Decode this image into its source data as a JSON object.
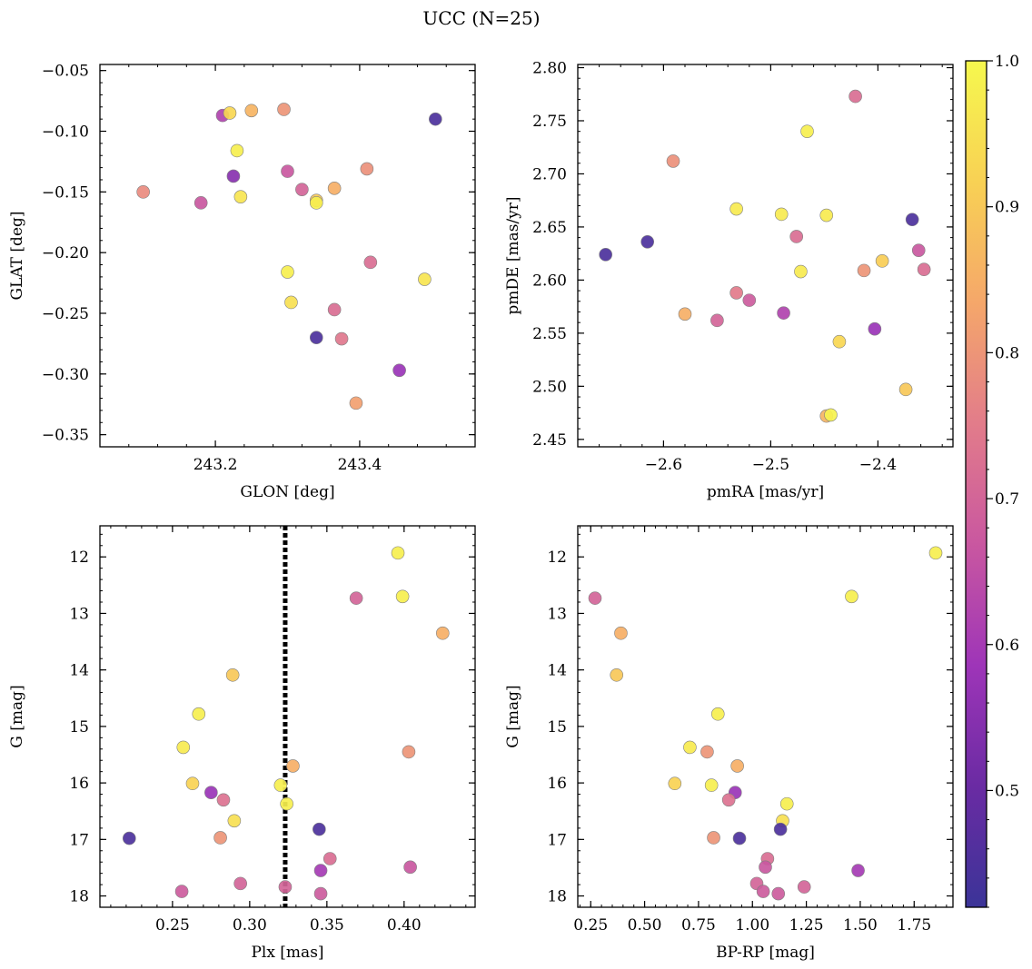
{
  "figure_title": "UCC (N=25)",
  "colorbar": {
    "ticks": [
      "0.5",
      "0.6",
      "0.7",
      "0.8",
      "0.9",
      "1.0"
    ],
    "tick_values": [
      0.5,
      0.6,
      0.7,
      0.8,
      0.9,
      1.0
    ],
    "range": [
      0.42,
      1.0
    ],
    "stops": [
      "#3b3498",
      "#6a2ba3",
      "#9e35b8",
      "#c957a0",
      "#e27c8a",
      "#f5a76a",
      "#f8d154",
      "#f6f84e"
    ]
  },
  "chart_data": [
    {
      "type": "scatter",
      "xlabel": "GLON [deg]",
      "ylabel": "GLAT [deg]",
      "xlim": [
        243.04,
        243.56
      ],
      "ylim": [
        -0.36,
        -0.045
      ],
      "invert_y": false,
      "xticks": [
        243.2,
        243.4
      ],
      "xtick_labels": [
        "243.2",
        "243.4"
      ],
      "yticks": [
        -0.35,
        -0.3,
        -0.25,
        -0.2,
        -0.15,
        -0.1,
        -0.05
      ],
      "ytick_labels": [
        "−0.35",
        "−0.30",
        "−0.25",
        "−0.20",
        "−0.15",
        "−0.10",
        "−0.05"
      ],
      "points": [
        {
          "x": 243.1,
          "y": -0.15,
          "c": 0.78
        },
        {
          "x": 243.18,
          "y": -0.159,
          "c": 0.67
        },
        {
          "x": 243.21,
          "y": -0.087,
          "c": 0.62
        },
        {
          "x": 243.22,
          "y": -0.085,
          "c": 0.93
        },
        {
          "x": 243.225,
          "y": -0.137,
          "c": 0.55
        },
        {
          "x": 243.23,
          "y": -0.116,
          "c": 0.98
        },
        {
          "x": 243.235,
          "y": -0.154,
          "c": 0.96
        },
        {
          "x": 243.25,
          "y": -0.083,
          "c": 0.86
        },
        {
          "x": 243.295,
          "y": -0.082,
          "c": 0.8
        },
        {
          "x": 243.3,
          "y": -0.133,
          "c": 0.67
        },
        {
          "x": 243.3,
          "y": -0.216,
          "c": 0.98
        },
        {
          "x": 243.305,
          "y": -0.241,
          "c": 0.95
        },
        {
          "x": 243.32,
          "y": -0.148,
          "c": 0.7
        },
        {
          "x": 243.34,
          "y": -0.157,
          "c": 0.9
        },
        {
          "x": 243.34,
          "y": -0.159,
          "c": 0.98
        },
        {
          "x": 243.34,
          "y": -0.27,
          "c": 0.45
        },
        {
          "x": 243.365,
          "y": -0.147,
          "c": 0.85
        },
        {
          "x": 243.365,
          "y": -0.247,
          "c": 0.72
        },
        {
          "x": 243.375,
          "y": -0.271,
          "c": 0.74
        },
        {
          "x": 243.395,
          "y": -0.324,
          "c": 0.82
        },
        {
          "x": 243.41,
          "y": -0.131,
          "c": 0.79
        },
        {
          "x": 243.415,
          "y": -0.208,
          "c": 0.72
        },
        {
          "x": 243.455,
          "y": -0.297,
          "c": 0.58
        },
        {
          "x": 243.49,
          "y": -0.222,
          "c": 0.96
        },
        {
          "x": 243.505,
          "y": -0.09,
          "c": 0.45
        }
      ]
    },
    {
      "type": "scatter",
      "xlabel": "pmRA [mas/yr]",
      "ylabel": "pmDE [mas/yr]",
      "xlim": [
        -2.68,
        -2.33
      ],
      "ylim": [
        2.443,
        2.803
      ],
      "invert_y": false,
      "xticks": [
        -2.6,
        -2.5,
        -2.4
      ],
      "xtick_labels": [
        "−2.6",
        "−2.5",
        "−2.4"
      ],
      "yticks": [
        2.45,
        2.5,
        2.55,
        2.6,
        2.65,
        2.7,
        2.75,
        2.8
      ],
      "ytick_labels": [
        "2.45",
        "2.50",
        "2.55",
        "2.60",
        "2.65",
        "2.70",
        "2.75",
        "2.80"
      ],
      "points": [
        {
          "x": -2.654,
          "y": 2.624,
          "c": 0.45
        },
        {
          "x": -2.615,
          "y": 2.636,
          "c": 0.45
        },
        {
          "x": -2.591,
          "y": 2.712,
          "c": 0.79
        },
        {
          "x": -2.58,
          "y": 2.568,
          "c": 0.85
        },
        {
          "x": -2.55,
          "y": 2.562,
          "c": 0.7
        },
        {
          "x": -2.532,
          "y": 2.667,
          "c": 0.97
        },
        {
          "x": -2.532,
          "y": 2.588,
          "c": 0.75
        },
        {
          "x": -2.52,
          "y": 2.581,
          "c": 0.68
        },
        {
          "x": -2.49,
          "y": 2.662,
          "c": 0.97
        },
        {
          "x": -2.488,
          "y": 2.569,
          "c": 0.62
        },
        {
          "x": -2.476,
          "y": 2.641,
          "c": 0.72
        },
        {
          "x": -2.472,
          "y": 2.608,
          "c": 0.97
        },
        {
          "x": -2.466,
          "y": 2.74,
          "c": 0.98
        },
        {
          "x": -2.448,
          "y": 2.661,
          "c": 0.97
        },
        {
          "x": -2.448,
          "y": 2.472,
          "c": 0.86
        },
        {
          "x": -2.444,
          "y": 2.473,
          "c": 0.99
        },
        {
          "x": -2.436,
          "y": 2.542,
          "c": 0.93
        },
        {
          "x": -2.421,
          "y": 2.773,
          "c": 0.72
        },
        {
          "x": -2.413,
          "y": 2.609,
          "c": 0.8
        },
        {
          "x": -2.403,
          "y": 2.554,
          "c": 0.58
        },
        {
          "x": -2.396,
          "y": 2.618,
          "c": 0.91
        },
        {
          "x": -2.374,
          "y": 2.497,
          "c": 0.9
        },
        {
          "x": -2.368,
          "y": 2.657,
          "c": 0.45
        },
        {
          "x": -2.362,
          "y": 2.628,
          "c": 0.67
        },
        {
          "x": -2.357,
          "y": 2.61,
          "c": 0.72
        }
      ]
    },
    {
      "type": "scatter",
      "xlabel": "Plx [mas]",
      "ylabel": "G [mag]",
      "xlim": [
        0.203,
        0.446
      ],
      "ylim": [
        11.45,
        18.2
      ],
      "invert_y": true,
      "xticks": [
        0.25,
        0.3,
        0.35,
        0.4
      ],
      "xtick_labels": [
        "0.25",
        "0.30",
        "0.35",
        "0.40"
      ],
      "yticks": [
        12,
        13,
        14,
        15,
        16,
        17,
        18
      ],
      "ytick_labels": [
        "12",
        "13",
        "14",
        "15",
        "16",
        "17",
        "18"
      ],
      "vline": {
        "x": 0.323,
        "style": "dotted"
      },
      "points": [
        {
          "x": 0.222,
          "y": 16.98,
          "c": 0.45
        },
        {
          "x": 0.256,
          "y": 17.92,
          "c": 0.68
        },
        {
          "x": 0.257,
          "y": 15.37,
          "c": 0.97
        },
        {
          "x": 0.263,
          "y": 16.01,
          "c": 0.92
        },
        {
          "x": 0.267,
          "y": 14.78,
          "c": 0.98
        },
        {
          "x": 0.275,
          "y": 16.17,
          "c": 0.58
        },
        {
          "x": 0.281,
          "y": 16.97,
          "c": 0.8
        },
        {
          "x": 0.283,
          "y": 16.3,
          "c": 0.73
        },
        {
          "x": 0.289,
          "y": 14.09,
          "c": 0.9
        },
        {
          "x": 0.29,
          "y": 16.67,
          "c": 0.95
        },
        {
          "x": 0.294,
          "y": 17.78,
          "c": 0.7
        },
        {
          "x": 0.32,
          "y": 16.04,
          "c": 0.98
        },
        {
          "x": 0.323,
          "y": 17.84,
          "c": 0.7
        },
        {
          "x": 0.324,
          "y": 16.37,
          "c": 0.98
        },
        {
          "x": 0.328,
          "y": 15.7,
          "c": 0.85
        },
        {
          "x": 0.345,
          "y": 16.82,
          "c": 0.45
        },
        {
          "x": 0.346,
          "y": 17.55,
          "c": 0.6
        },
        {
          "x": 0.346,
          "y": 17.96,
          "c": 0.68
        },
        {
          "x": 0.352,
          "y": 17.34,
          "c": 0.72
        },
        {
          "x": 0.369,
          "y": 12.73,
          "c": 0.7
        },
        {
          "x": 0.396,
          "y": 11.93,
          "c": 0.98
        },
        {
          "x": 0.399,
          "y": 12.7,
          "c": 0.98
        },
        {
          "x": 0.403,
          "y": 15.45,
          "c": 0.8
        },
        {
          "x": 0.404,
          "y": 17.49,
          "c": 0.67
        },
        {
          "x": 0.425,
          "y": 13.35,
          "c": 0.85
        }
      ]
    },
    {
      "type": "scatter",
      "xlabel": "BP-RP [mag]",
      "ylabel": "G [mag]",
      "xlim": [
        0.19,
        1.93
      ],
      "ylim": [
        11.45,
        18.2
      ],
      "invert_y": true,
      "xticks": [
        0.25,
        0.5,
        0.75,
        1.0,
        1.25,
        1.5,
        1.75
      ],
      "xtick_labels": [
        "0.25",
        "0.50",
        "0.75",
        "1.00",
        "1.25",
        "1.50",
        "1.75"
      ],
      "yticks": [
        12,
        13,
        14,
        15,
        16,
        17,
        18
      ],
      "ytick_labels": [
        "12",
        "13",
        "14",
        "15",
        "16",
        "17",
        "18"
      ],
      "points": [
        {
          "x": 0.27,
          "y": 12.73,
          "c": 0.7
        },
        {
          "x": 0.39,
          "y": 13.35,
          "c": 0.85
        },
        {
          "x": 0.37,
          "y": 14.09,
          "c": 0.9
        },
        {
          "x": 0.84,
          "y": 14.78,
          "c": 0.98
        },
        {
          "x": 0.71,
          "y": 15.37,
          "c": 0.97
        },
        {
          "x": 0.79,
          "y": 15.45,
          "c": 0.8
        },
        {
          "x": 0.93,
          "y": 15.7,
          "c": 0.85
        },
        {
          "x": 0.64,
          "y": 16.01,
          "c": 0.92
        },
        {
          "x": 0.81,
          "y": 16.04,
          "c": 0.98
        },
        {
          "x": 0.92,
          "y": 16.17,
          "c": 0.58
        },
        {
          "x": 0.89,
          "y": 16.3,
          "c": 0.73
        },
        {
          "x": 1.16,
          "y": 16.37,
          "c": 0.98
        },
        {
          "x": 1.14,
          "y": 16.67,
          "c": 0.95
        },
        {
          "x": 1.13,
          "y": 16.82,
          "c": 0.45
        },
        {
          "x": 0.82,
          "y": 16.97,
          "c": 0.8
        },
        {
          "x": 0.94,
          "y": 16.98,
          "c": 0.45
        },
        {
          "x": 1.07,
          "y": 17.34,
          "c": 0.72
        },
        {
          "x": 1.06,
          "y": 17.49,
          "c": 0.67
        },
        {
          "x": 1.49,
          "y": 17.55,
          "c": 0.6
        },
        {
          "x": 1.02,
          "y": 17.78,
          "c": 0.7
        },
        {
          "x": 1.24,
          "y": 17.84,
          "c": 0.7
        },
        {
          "x": 1.05,
          "y": 17.92,
          "c": 0.68
        },
        {
          "x": 1.12,
          "y": 17.96,
          "c": 0.68
        },
        {
          "x": 1.46,
          "y": 12.7,
          "c": 0.98
        },
        {
          "x": 1.85,
          "y": 11.93,
          "c": 0.98
        }
      ]
    }
  ]
}
